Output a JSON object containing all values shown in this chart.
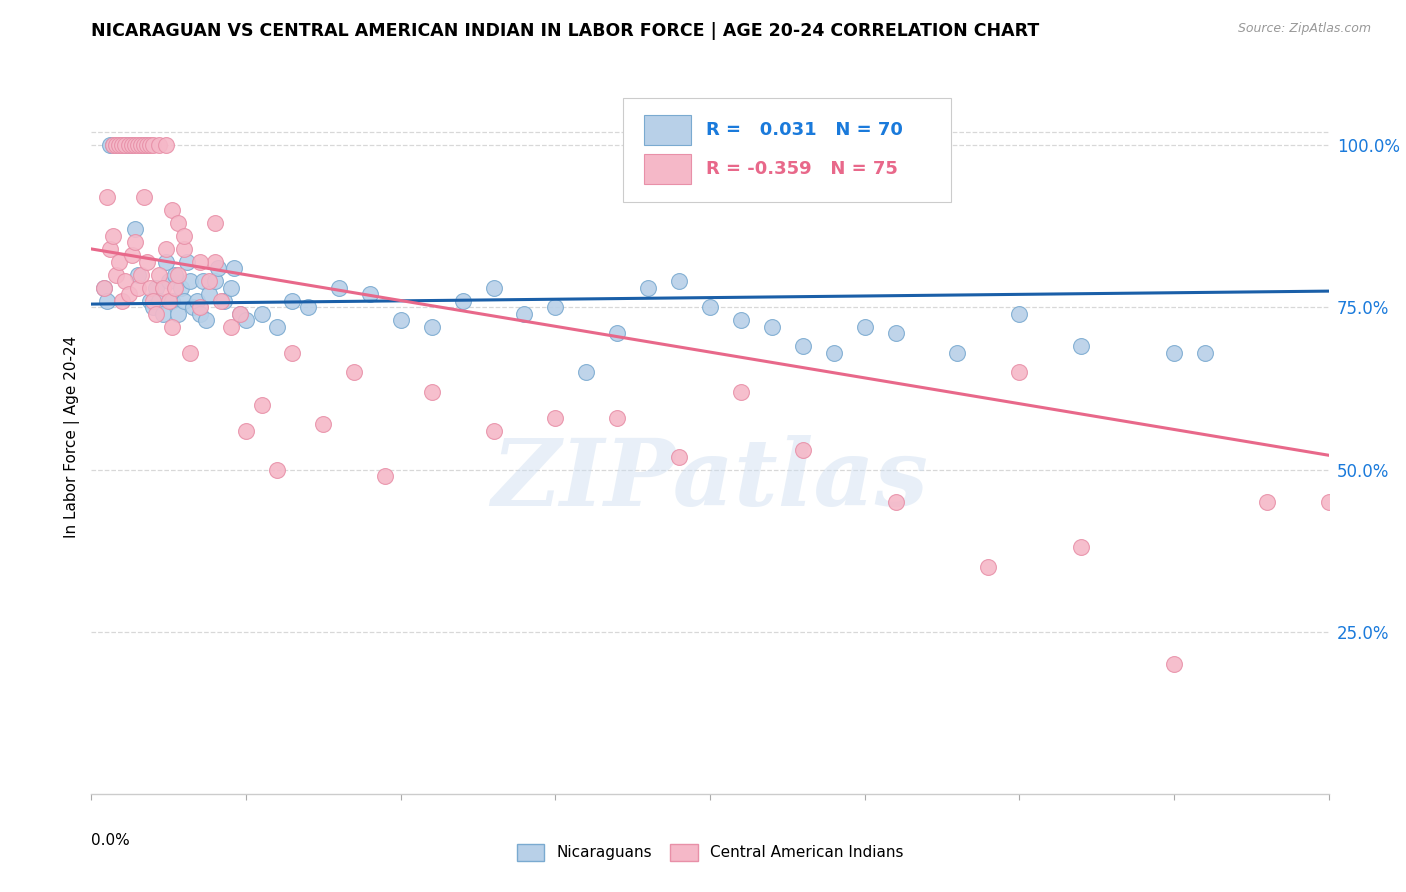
{
  "title": "NICARAGUAN VS CENTRAL AMERICAN INDIAN IN LABOR FORCE | AGE 20-24 CORRELATION CHART",
  "source": "Source: ZipAtlas.com",
  "ylabel": "In Labor Force | Age 20-24",
  "ytick_labels": [
    "25.0%",
    "50.0%",
    "75.0%",
    "100.0%"
  ],
  "ytick_values": [
    0.25,
    0.5,
    0.75,
    1.0
  ],
  "xmin": 0.0,
  "xmax": 0.4,
  "ymin": 0.0,
  "ymax": 1.1,
  "legend_blue_r": "0.031",
  "legend_blue_n": "70",
  "legend_pink_r": "-0.359",
  "legend_pink_n": "75",
  "blue_color": "#b8d0e8",
  "pink_color": "#f5b8c8",
  "blue_edge": "#7aaad0",
  "pink_edge": "#e890a8",
  "trendline_blue": "#1a5fa8",
  "trendline_pink": "#e8688a",
  "grid_color": "#d8d8d8",
  "watermark": "ZIPatlas",
  "blue_trend_y0": 0.755,
  "blue_trend_y1": 0.775,
  "pink_trend_y0": 0.84,
  "pink_trend_y1": 0.522,
  "blue_scatter_x": [
    0.004,
    0.005,
    0.006,
    0.007,
    0.008,
    0.009,
    0.01,
    0.011,
    0.012,
    0.013,
    0.014,
    0.015,
    0.016,
    0.017,
    0.018,
    0.019,
    0.02,
    0.021,
    0.022,
    0.023,
    0.024,
    0.025,
    0.026,
    0.027,
    0.028,
    0.029,
    0.03,
    0.031,
    0.032,
    0.033,
    0.034,
    0.035,
    0.036,
    0.037,
    0.038,
    0.04,
    0.041,
    0.043,
    0.045,
    0.046,
    0.048,
    0.05,
    0.055,
    0.06,
    0.065,
    0.07,
    0.08,
    0.09,
    0.1,
    0.11,
    0.12,
    0.13,
    0.14,
    0.15,
    0.16,
    0.17,
    0.18,
    0.19,
    0.2,
    0.21,
    0.22,
    0.23,
    0.24,
    0.25,
    0.26,
    0.28,
    0.3,
    0.32,
    0.35,
    0.36
  ],
  "blue_scatter_y": [
    0.78,
    0.76,
    1.0,
    1.0,
    1.0,
    1.0,
    1.0,
    1.0,
    1.0,
    1.0,
    0.87,
    0.8,
    1.0,
    1.0,
    1.0,
    0.76,
    0.75,
    0.78,
    0.76,
    0.74,
    0.82,
    0.79,
    0.76,
    0.8,
    0.74,
    0.78,
    0.76,
    0.82,
    0.79,
    0.75,
    0.76,
    0.74,
    0.79,
    0.73,
    0.77,
    0.79,
    0.81,
    0.76,
    0.78,
    0.81,
    0.74,
    0.73,
    0.74,
    0.72,
    0.76,
    0.75,
    0.78,
    0.77,
    0.73,
    0.72,
    0.76,
    0.78,
    0.74,
    0.75,
    0.65,
    0.71,
    0.78,
    0.79,
    0.75,
    0.73,
    0.72,
    0.69,
    0.68,
    0.72,
    0.71,
    0.68,
    0.74,
    0.69,
    0.68,
    0.68
  ],
  "pink_scatter_x": [
    0.004,
    0.005,
    0.006,
    0.007,
    0.008,
    0.009,
    0.01,
    0.011,
    0.012,
    0.013,
    0.014,
    0.015,
    0.016,
    0.017,
    0.018,
    0.019,
    0.02,
    0.021,
    0.022,
    0.023,
    0.024,
    0.025,
    0.026,
    0.027,
    0.028,
    0.03,
    0.032,
    0.035,
    0.038,
    0.04,
    0.042,
    0.045,
    0.048,
    0.055,
    0.065,
    0.075,
    0.085,
    0.095,
    0.11,
    0.13,
    0.15,
    0.17,
    0.19,
    0.21,
    0.23,
    0.26,
    0.29,
    0.32,
    0.35,
    0.38,
    0.007,
    0.008,
    0.009,
    0.01,
    0.011,
    0.012,
    0.013,
    0.014,
    0.015,
    0.016,
    0.017,
    0.018,
    0.019,
    0.02,
    0.022,
    0.024,
    0.026,
    0.028,
    0.03,
    0.035,
    0.04,
    0.05,
    0.06,
    0.3,
    0.4
  ],
  "pink_scatter_y": [
    0.78,
    0.92,
    0.84,
    0.86,
    0.8,
    0.82,
    0.76,
    0.79,
    0.77,
    0.83,
    0.85,
    0.78,
    0.8,
    0.92,
    0.82,
    0.78,
    0.76,
    0.74,
    0.8,
    0.78,
    0.84,
    0.76,
    0.72,
    0.78,
    0.8,
    0.84,
    0.68,
    0.75,
    0.79,
    0.82,
    0.76,
    0.72,
    0.74,
    0.6,
    0.68,
    0.57,
    0.65,
    0.49,
    0.62,
    0.56,
    0.58,
    0.58,
    0.52,
    0.62,
    0.53,
    0.45,
    0.35,
    0.38,
    0.2,
    0.45,
    1.0,
    1.0,
    1.0,
    1.0,
    1.0,
    1.0,
    1.0,
    1.0,
    1.0,
    1.0,
    1.0,
    1.0,
    1.0,
    1.0,
    1.0,
    1.0,
    0.9,
    0.88,
    0.86,
    0.82,
    0.88,
    0.56,
    0.5,
    0.65,
    0.45
  ]
}
